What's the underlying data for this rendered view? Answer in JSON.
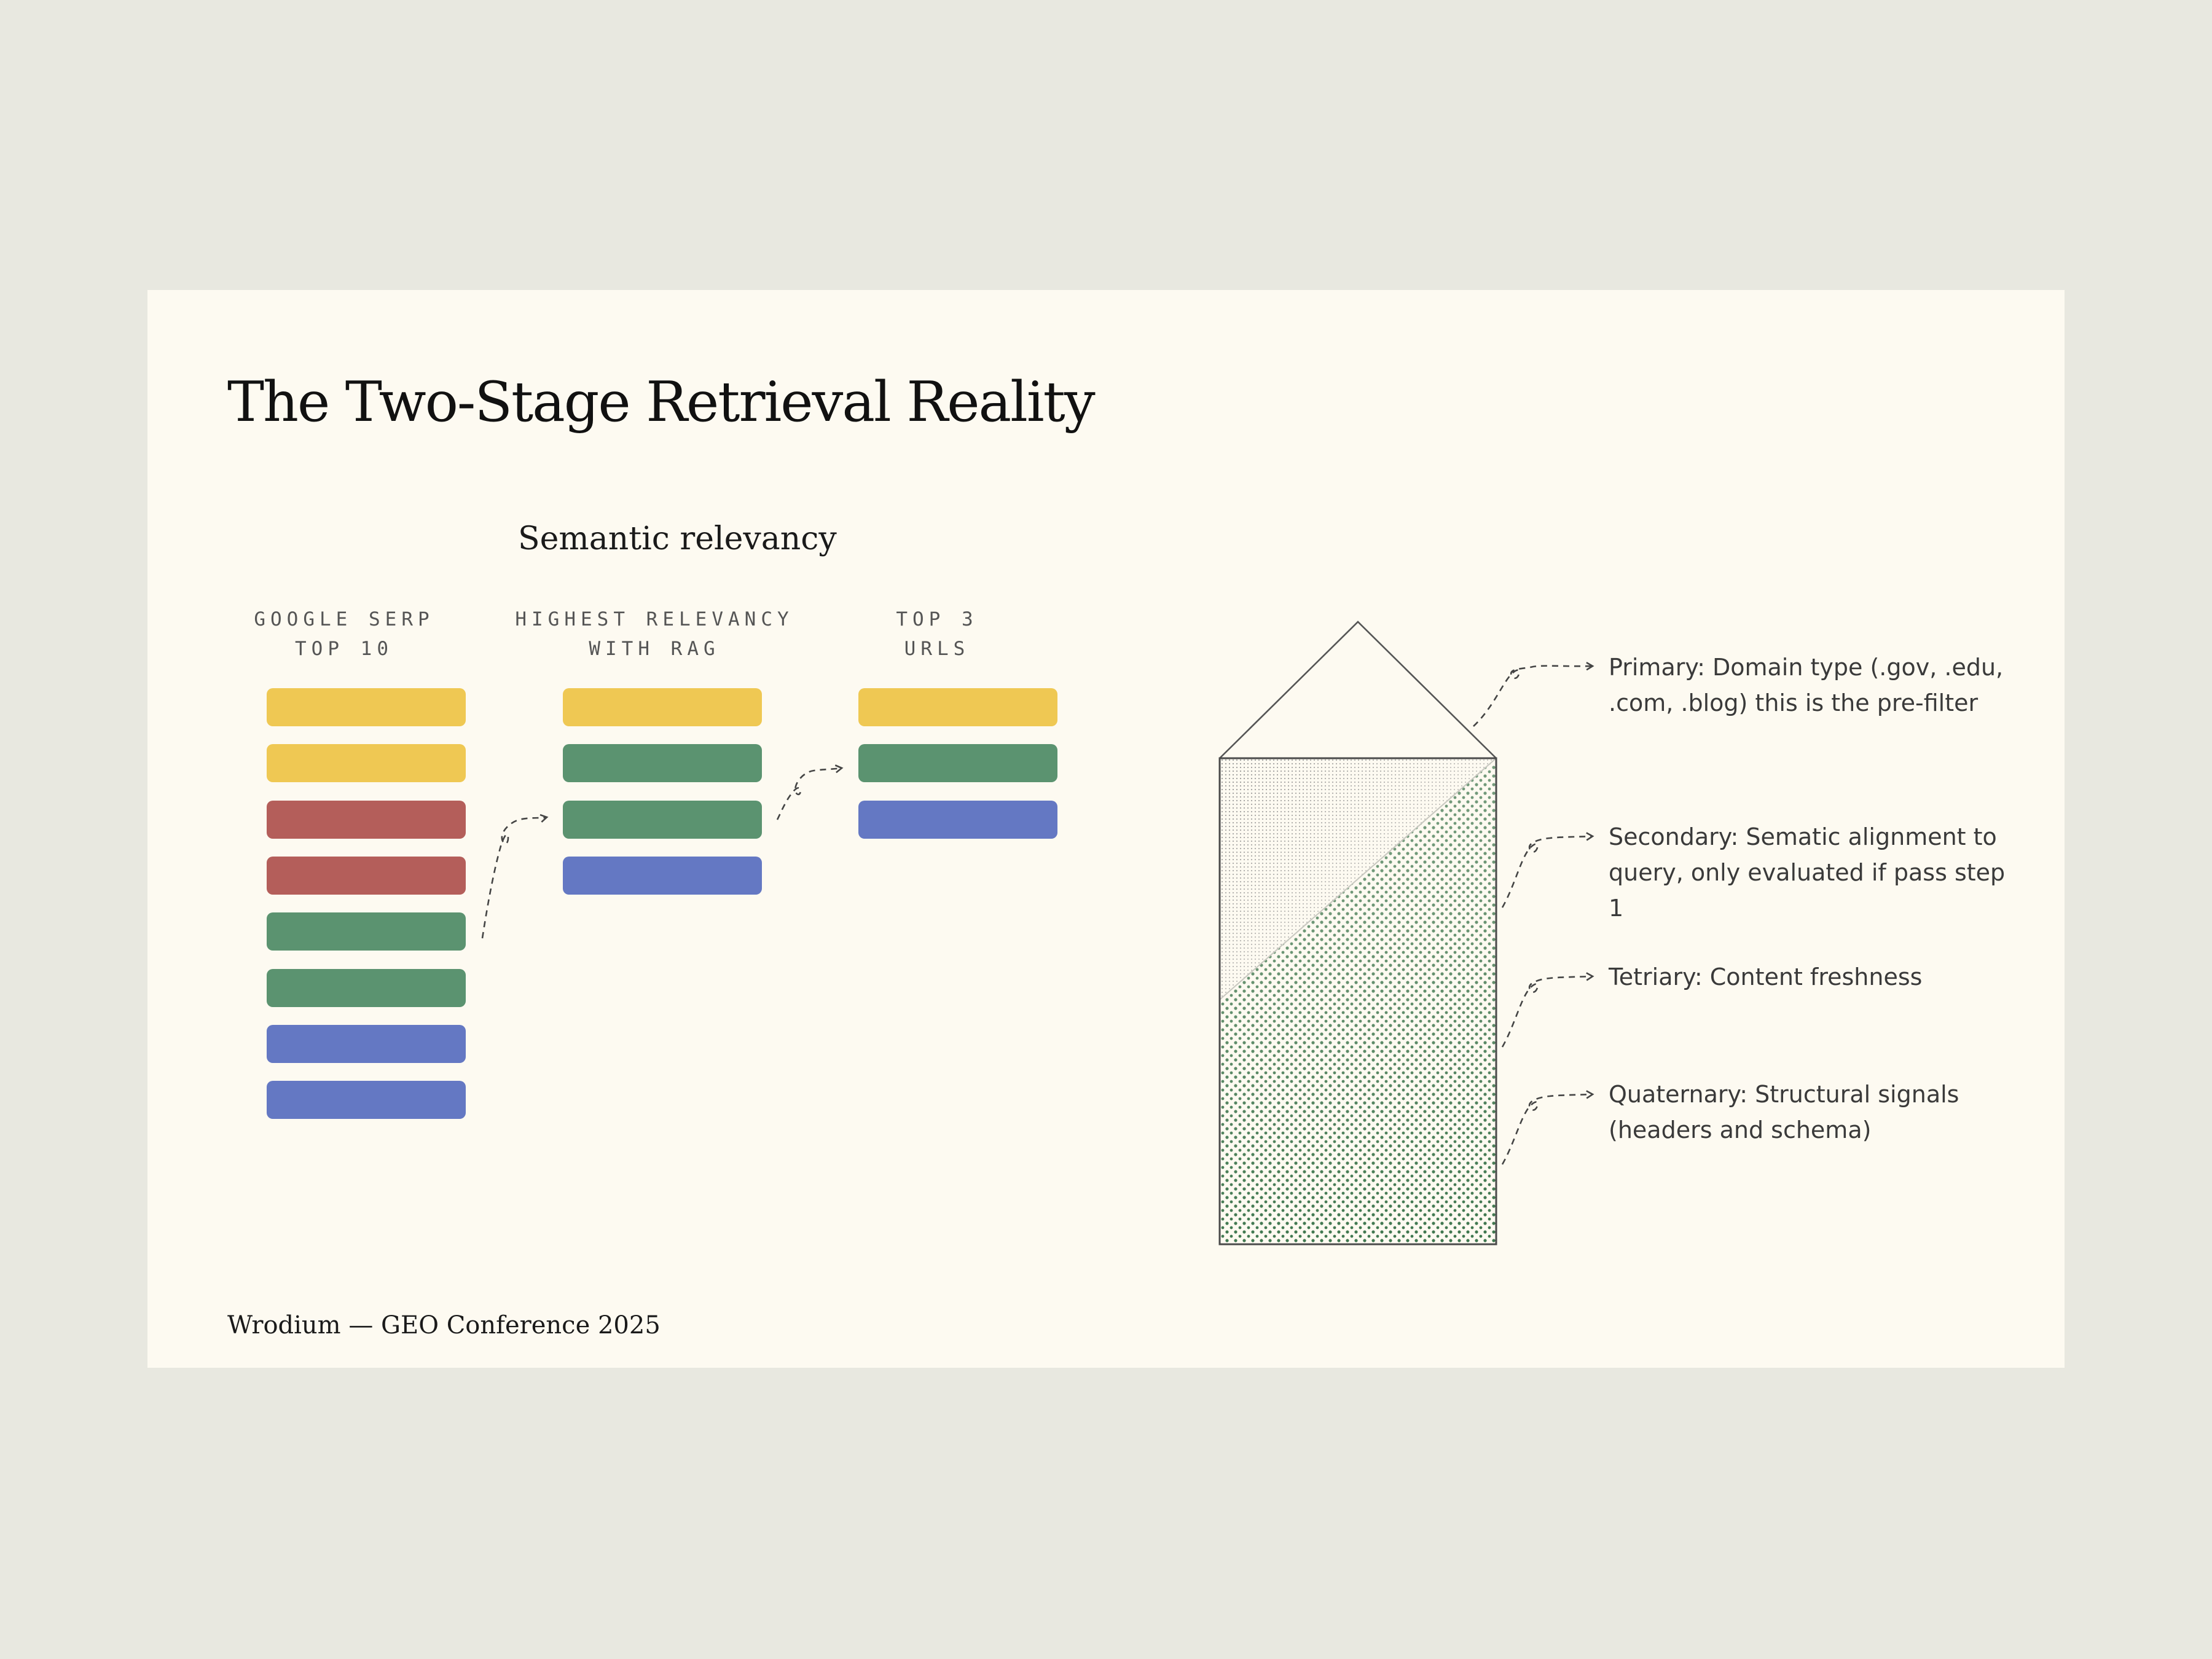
{
  "slide": {
    "title": "The Two-Stage Retrieval Reality",
    "subtitle": "Semantic relevancy",
    "footer": "Wrodium — GEO Conference 2025"
  },
  "colors": {
    "yellow": "#efc853",
    "red": "#b45e5a",
    "green": "#5b9370",
    "blue": "#6478c3",
    "dot_green": "#1f5a33",
    "slide_bg": "#fdfaf1",
    "page_bg": "#e8e8e0"
  },
  "columns": [
    {
      "header": [
        "GOOGLE SERP",
        "TOP 10"
      ],
      "bars": [
        "yellow",
        "yellow",
        "red",
        "red",
        "green",
        "green",
        "blue",
        "blue"
      ]
    },
    {
      "header": [
        "HIGHEST RELEVANCY",
        "WITH RAG"
      ],
      "bars": [
        "yellow",
        "green",
        "green",
        "blue"
      ]
    },
    {
      "header": [
        "TOP 3",
        "URLS"
      ],
      "bars": [
        "yellow",
        "green",
        "blue"
      ]
    }
  ],
  "annotations": [
    {
      "text": "Primary: Domain type (.gov, .edu, .com, .blog) this is the pre-filter"
    },
    {
      "text": "Secondary: Sematic alignment to query, only evaluated if pass step 1"
    },
    {
      "text": "Tetriary: Content freshness"
    },
    {
      "text": "Quaternary: Structural signals (headers and schema)"
    }
  ]
}
